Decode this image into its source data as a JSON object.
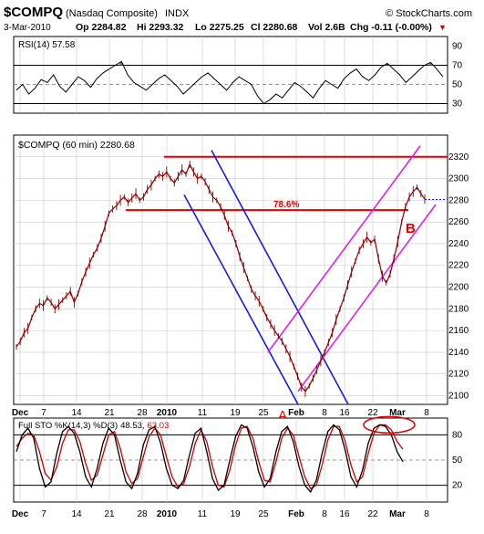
{
  "header": {
    "symbol": "$COMPQ",
    "name": "(Nasdaq Composite)",
    "exchange": "INDX",
    "watermark": "© StockCharts.com",
    "date": "3-Mar-2010",
    "op": "Op 2284.82",
    "hi": "Hi 2293.32",
    "lo": "Lo 2275.25",
    "cl": "Cl 2280.68",
    "vol": "Vol 2.6B",
    "chg": "Chg -0.11 (-0.00%)",
    "chg_marker": "▼"
  },
  "colors": {
    "frame": "#000000",
    "grid": "#c8c8c8",
    "price_line": "#8b0000",
    "resistance": "#e00000",
    "blue_channel": "#1a1adc",
    "magenta_channel": "#e020e0",
    "label_red": "#e00000",
    "rsi_fill": "#5a8a5a",
    "sto_ellipse": "#e00000"
  },
  "chart_data": [
    {
      "type": "line",
      "title": "RSI(14) 57.58",
      "series": [
        {
          "name": "RSI(14)",
          "values": [
            44,
            50,
            40,
            46,
            55,
            52,
            60,
            48,
            42,
            50,
            58,
            54,
            47,
            56,
            62,
            66,
            70,
            74,
            60,
            52,
            48,
            44,
            50,
            56,
            60,
            54,
            48,
            40,
            46,
            52,
            58,
            62,
            56,
            50,
            44,
            52,
            58,
            54,
            50,
            38,
            30,
            34,
            40,
            36,
            44,
            52,
            48,
            42,
            36,
            46,
            54,
            50,
            46,
            56,
            62,
            66,
            58,
            54,
            60,
            68,
            72,
            66,
            60,
            52,
            58,
            64,
            70,
            73,
            66,
            58
          ]
        }
      ],
      "yticks": [
        30,
        50,
        70,
        90
      ],
      "yticks_labels": [
        "30",
        "50",
        "70",
        "90"
      ],
      "ylim": [
        20,
        100
      ],
      "reference_lines": [
        30,
        50,
        70
      ]
    },
    {
      "type": "line",
      "title": "$COMPQ (60 min) 2280.68",
      "x_labels": [
        "Dec",
        "7",
        "14",
        "21",
        "28",
        "2010",
        "11",
        "19",
        "25",
        "Feb",
        "8",
        "16",
        "22",
        "Mar",
        "8"
      ],
      "yticks": [
        2100,
        2120,
        2140,
        2160,
        2180,
        2200,
        2220,
        2240,
        2260,
        2280,
        2300,
        2320
      ],
      "ylim": [
        2092,
        2340
      ],
      "series": [
        {
          "name": "$COMPQ (60 min)",
          "values": [
            2145,
            2150,
            2158,
            2162,
            2172,
            2180,
            2185,
            2183,
            2190,
            2186,
            2180,
            2184,
            2188,
            2192,
            2196,
            2186,
            2194,
            2205,
            2214,
            2222,
            2230,
            2236,
            2245,
            2256,
            2268,
            2272,
            2275,
            2280,
            2283,
            2278,
            2282,
            2286,
            2280,
            2283,
            2290,
            2294,
            2300,
            2304,
            2302,
            2306,
            2300,
            2296,
            2302,
            2308,
            2304,
            2313,
            2306,
            2300,
            2302,
            2297,
            2290,
            2283,
            2280,
            2274,
            2266,
            2256,
            2250,
            2240,
            2228,
            2218,
            2208,
            2198,
            2192,
            2187,
            2180,
            2172,
            2166,
            2160,
            2155,
            2150,
            2143,
            2136,
            2127,
            2118,
            2108,
            2104,
            2109,
            2116,
            2124,
            2132,
            2140,
            2149,
            2158,
            2170,
            2180,
            2190,
            2202,
            2214,
            2224,
            2234,
            2240,
            2246,
            2241,
            2244,
            2226,
            2210,
            2204,
            2212,
            2226,
            2242,
            2260,
            2274,
            2283,
            2288,
            2292,
            2286,
            2281
          ]
        }
      ],
      "annotations": {
        "resistance_2320": 2320,
        "fib_78_6": 2271,
        "fib_label": "78.6%",
        "label_A": "A",
        "label_B": "B",
        "last_value": 2280.68
      }
    },
    {
      "type": "line",
      "title": "Full STO %K(14,3) %D(3) 48.53, 63.03",
      "title_prefix": "Full STO %K(14,3) %D(3)",
      "k_value": "48.53,",
      "d_value": "63.03",
      "series": [
        {
          "name": "%K(14,3)",
          "values": [
            60,
            80,
            88,
            76,
            40,
            18,
            24,
            58,
            84,
            90,
            82,
            60,
            30,
            18,
            40,
            70,
            88,
            80,
            50,
            24,
            16,
            34,
            68,
            86,
            90,
            70,
            40,
            20,
            16,
            26,
            56,
            82,
            88,
            60,
            28,
            14,
            20,
            50,
            78,
            92,
            88,
            66,
            36,
            18,
            28,
            60,
            84,
            90,
            72,
            42,
            20,
            12,
            26,
            58,
            84,
            92,
            86,
            62,
            30,
            18,
            38,
            70,
            88,
            92,
            90,
            80,
            60,
            48
          ]
        },
        {
          "name": "%D(3)",
          "values": [
            66,
            76,
            82,
            80,
            60,
            34,
            26,
            42,
            70,
            86,
            86,
            72,
            46,
            26,
            32,
            56,
            80,
            84,
            64,
            36,
            22,
            28,
            54,
            78,
            88,
            80,
            54,
            30,
            18,
            22,
            42,
            70,
            86,
            72,
            42,
            20,
            18,
            38,
            68,
            88,
            90,
            76,
            48,
            26,
            24,
            48,
            76,
            88,
            80,
            54,
            30,
            16,
            20,
            44,
            74,
            90,
            90,
            72,
            44,
            24,
            30,
            58,
            82,
            92,
            92,
            86,
            72,
            63
          ]
        }
      ],
      "yticks": [
        20,
        50,
        80
      ],
      "yticks_labels": [
        "20",
        "50",
        "80"
      ],
      "ylim": [
        0,
        100
      ],
      "x_labels": [
        "Dec",
        "7",
        "14",
        "21",
        "28",
        "2010",
        "11",
        "19",
        "25",
        "Feb",
        "8",
        "16",
        "22",
        "Mar",
        "8"
      ]
    }
  ]
}
